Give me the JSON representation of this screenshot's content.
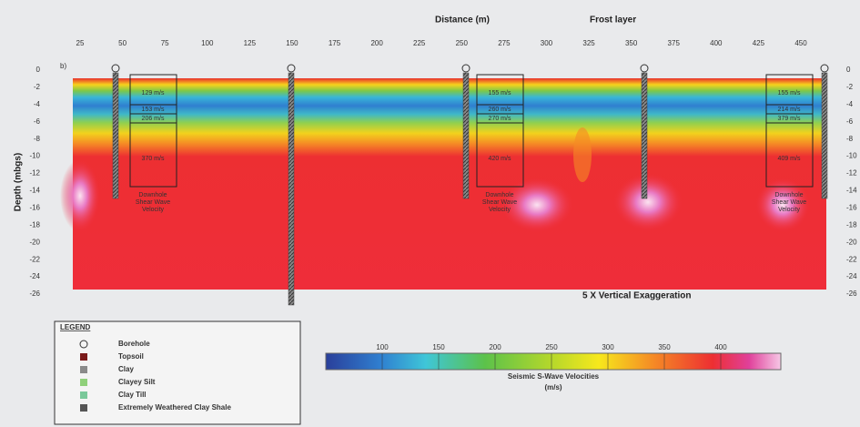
{
  "figure": {
    "panel_label": "b)",
    "x_axis": {
      "label": "Distance (m)",
      "ticks": [
        25,
        50,
        75,
        100,
        125,
        150,
        175,
        200,
        225,
        250,
        275,
        300,
        325,
        350,
        375,
        400,
        425,
        450
      ]
    },
    "frost_label": "Frost layer",
    "y_axis": {
      "label": "Depth (mbgs)",
      "ticks": [
        0,
        -2,
        -4,
        -6,
        -8,
        -10,
        -12,
        -14,
        -16,
        -18,
        -20,
        -22,
        -24,
        -26
      ]
    },
    "exaggeration": "5 X Vertical Exaggeration",
    "boreholes": [
      {
        "labels": [
          "129 m/s",
          "153 m/s",
          "206 m/s",
          "370 m/s"
        ],
        "caption": "Downhole Shear Wave Velocity"
      },
      {
        "labels": [
          "155 m/s",
          "260 m/s",
          "270 m/s",
          "420 m/s"
        ],
        "caption": "Downhole Shear Wave Velocity"
      },
      {
        "labels": [
          "155 m/s",
          "214 m/s",
          "379 m/s",
          "409 m/s"
        ],
        "caption": "Downhole Shear Wave Velocity"
      }
    ],
    "legend": {
      "title": "LEGEND",
      "items": [
        "Borehole",
        "Topsoil",
        "Clay",
        "Clayey Silt",
        "Clay Till",
        "Extremely Weathered Clay Shale"
      ]
    },
    "colorbar": {
      "ticks": [
        100,
        150,
        200,
        250,
        300,
        350,
        400
      ],
      "title": "Seismic S-Wave Velocities",
      "unit": "(m/s)"
    }
  }
}
